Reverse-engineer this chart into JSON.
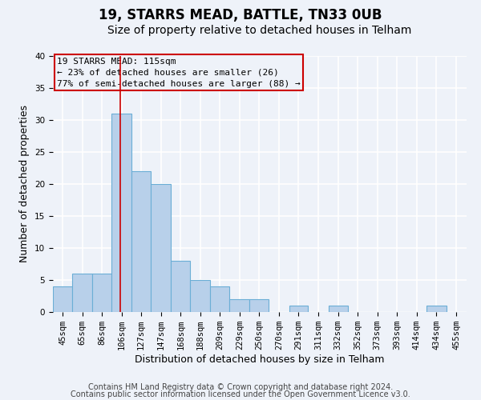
{
  "title": "19, STARRS MEAD, BATTLE, TN33 0UB",
  "subtitle": "Size of property relative to detached houses in Telham",
  "xlabel": "Distribution of detached houses by size in Telham",
  "ylabel": "Number of detached properties",
  "bar_labels": [
    "45sqm",
    "65sqm",
    "86sqm",
    "106sqm",
    "127sqm",
    "147sqm",
    "168sqm",
    "188sqm",
    "209sqm",
    "229sqm",
    "250sqm",
    "270sqm",
    "291sqm",
    "311sqm",
    "332sqm",
    "352sqm",
    "373sqm",
    "393sqm",
    "414sqm",
    "434sqm",
    "455sqm"
  ],
  "bar_values": [
    4,
    6,
    6,
    31,
    22,
    20,
    8,
    5,
    4,
    2,
    2,
    0,
    1,
    0,
    1,
    0,
    0,
    0,
    0,
    1,
    0
  ],
  "bin_edges": [
    45,
    65,
    86,
    106,
    127,
    147,
    168,
    188,
    209,
    229,
    250,
    270,
    291,
    311,
    332,
    352,
    373,
    393,
    414,
    434,
    455,
    476
  ],
  "bar_color": "#b8d0ea",
  "bar_edge_color": "#6baed6",
  "ylim": [
    0,
    40
  ],
  "yticks": [
    0,
    5,
    10,
    15,
    20,
    25,
    30,
    35,
    40
  ],
  "red_line_x": 115,
  "annotation_box_line1": "19 STARRS MEAD: 115sqm",
  "annotation_box_line2": "← 23% of detached houses are smaller (26)",
  "annotation_box_line3": "77% of semi-detached houses are larger (88) →",
  "annotation_box_color": "#cc0000",
  "footer_line1": "Contains HM Land Registry data © Crown copyright and database right 2024.",
  "footer_line2": "Contains public sector information licensed under the Open Government Licence v3.0.",
  "bg_color": "#eef2f9",
  "grid_color": "#ffffff",
  "title_fontsize": 12,
  "subtitle_fontsize": 10,
  "axis_label_fontsize": 9,
  "tick_fontsize": 7.5,
  "annotation_fontsize": 8,
  "footer_fontsize": 7
}
